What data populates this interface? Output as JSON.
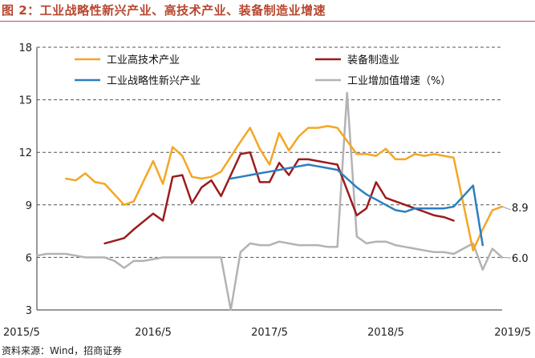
{
  "header": {
    "title": "图 2：工业战略性新兴产业、高技术产业、装备制造业增速"
  },
  "footer": {
    "source": "资料来源：Wind，招商证券"
  },
  "colors": {
    "high_tech": "#f5a623",
    "equipment": "#9b1c1c",
    "strategic": "#2b7fc1",
    "industrial": "#b3b3b3",
    "title": "#b8462e",
    "grid": "#555555"
  },
  "chart_data": {
    "type": "line",
    "title": "图 2：工业战略性新兴产业、高技术产业、装备制造业增速",
    "xlabel": "",
    "ylabel": "",
    "ylim": [
      3,
      18
    ],
    "yticks": [
      3,
      6,
      9,
      12,
      15,
      18
    ],
    "x_start": "2015/5",
    "x_end": "2019/5",
    "x_ticks": [
      "2015/5",
      "2016/5",
      "2017/5",
      "2018/5",
      "2019/5"
    ],
    "grid": "horizontal dashed",
    "legend_position": "top",
    "end_labels": [
      "8.9",
      "6.0"
    ],
    "series": [
      {
        "name": "工业高技术产业",
        "color": "#f5a623",
        "points": [
          [
            "2015/8",
            10.5
          ],
          [
            "2015/9",
            10.4
          ],
          [
            "2015/10",
            10.8
          ],
          [
            "2015/11",
            10.3
          ],
          [
            "2015/12",
            10.2
          ],
          [
            "2016/2",
            9.0
          ],
          [
            "2016/3",
            9.2
          ],
          [
            "2016/5",
            11.5
          ],
          [
            "2016/6",
            10.2
          ],
          [
            "2016/7",
            12.3
          ],
          [
            "2016/8",
            11.8
          ],
          [
            "2016/9",
            10.6
          ],
          [
            "2016/10",
            10.5
          ],
          [
            "2016/11",
            10.6
          ],
          [
            "2016/12",
            10.9
          ],
          [
            "2017/2",
            12.6
          ],
          [
            "2017/3",
            13.4
          ],
          [
            "2017/4",
            12.2
          ],
          [
            "2017/5",
            11.3
          ],
          [
            "2017/6",
            13.1
          ],
          [
            "2017/7",
            12.1
          ],
          [
            "2017/8",
            12.9
          ],
          [
            "2017/9",
            13.4
          ],
          [
            "2017/10",
            13.4
          ],
          [
            "2017/11",
            13.5
          ],
          [
            "2017/12",
            13.4
          ],
          [
            "2018/2",
            11.9
          ],
          [
            "2018/3",
            11.9
          ],
          [
            "2018/4",
            11.8
          ],
          [
            "2018/5",
            12.2
          ],
          [
            "2018/6",
            11.6
          ],
          [
            "2018/7",
            11.6
          ],
          [
            "2018/8",
            11.9
          ],
          [
            "2018/9",
            11.8
          ],
          [
            "2018/10",
            11.9
          ],
          [
            "2018/11",
            11.8
          ],
          [
            "2018/12",
            11.7
          ],
          [
            "2019/2",
            6.4
          ],
          [
            "2019/3",
            7.6
          ],
          [
            "2019/4",
            8.7
          ],
          [
            "2019/5",
            8.9
          ]
        ]
      },
      {
        "name": "装备制造业",
        "color": "#9b1c1c",
        "points": [
          [
            "2015/12",
            6.8
          ],
          [
            "2016/2",
            7.1
          ],
          [
            "2016/3",
            7.6
          ],
          [
            "2016/5",
            8.5
          ],
          [
            "2016/6",
            8.1
          ],
          [
            "2016/7",
            10.6
          ],
          [
            "2016/8",
            10.7
          ],
          [
            "2016/9",
            9.1
          ],
          [
            "2016/10",
            10.0
          ],
          [
            "2016/11",
            10.4
          ],
          [
            "2016/12",
            9.5
          ],
          [
            "2017/2",
            11.9
          ],
          [
            "2017/3",
            12.0
          ],
          [
            "2017/4",
            10.3
          ],
          [
            "2017/5",
            10.3
          ],
          [
            "2017/6",
            11.4
          ],
          [
            "2017/7",
            10.7
          ],
          [
            "2017/8",
            11.6
          ],
          [
            "2017/9",
            11.6
          ],
          [
            "2017/10",
            11.5
          ],
          [
            "2017/11",
            11.4
          ],
          [
            "2017/12",
            11.3
          ],
          [
            "2018/2",
            8.4
          ],
          [
            "2018/3",
            8.8
          ],
          [
            "2018/4",
            10.3
          ],
          [
            "2018/5",
            9.4
          ],
          [
            "2018/6",
            9.2
          ],
          [
            "2018/7",
            9.0
          ],
          [
            "2018/8",
            8.8
          ],
          [
            "2018/9",
            8.6
          ],
          [
            "2018/10",
            8.4
          ],
          [
            "2018/11",
            8.3
          ],
          [
            "2018/12",
            8.1
          ]
        ]
      },
      {
        "name": "工业战略性新兴产业",
        "color": "#2b7fc1",
        "points": [
          [
            "2017/1",
            10.5
          ],
          [
            "2017/2",
            10.6
          ],
          [
            "2017/3",
            10.7
          ],
          [
            "2017/4",
            10.8
          ],
          [
            "2017/5",
            10.9
          ],
          [
            "2017/6",
            11.0
          ],
          [
            "2017/7",
            11.1
          ],
          [
            "2017/8",
            11.2
          ],
          [
            "2017/9",
            11.3
          ],
          [
            "2017/10",
            11.2
          ],
          [
            "2017/11",
            11.1
          ],
          [
            "2017/12",
            11.0
          ],
          [
            "2018/1",
            10.5
          ],
          [
            "2018/2",
            10.0
          ],
          [
            "2018/3",
            9.6
          ],
          [
            "2018/4",
            9.3
          ],
          [
            "2018/5",
            9.0
          ],
          [
            "2018/6",
            8.7
          ],
          [
            "2018/7",
            8.6
          ],
          [
            "2018/8",
            8.8
          ],
          [
            "2018/9",
            8.8
          ],
          [
            "2018/10",
            8.8
          ],
          [
            "2018/11",
            8.8
          ],
          [
            "2018/12",
            8.9
          ],
          [
            "2019/2",
            10.1
          ],
          [
            "2019/3",
            6.7
          ]
        ]
      },
      {
        "name": "工业增加值增速（%）",
        "color": "#b3b3b3",
        "points": [
          [
            "2015/5",
            6.1
          ],
          [
            "2015/6",
            6.2
          ],
          [
            "2015/7",
            6.2
          ],
          [
            "2015/8",
            6.2
          ],
          [
            "2015/9",
            6.1
          ],
          [
            "2015/10",
            6.0
          ],
          [
            "2015/11",
            6.0
          ],
          [
            "2015/12",
            6.0
          ],
          [
            "2016/1",
            5.8
          ],
          [
            "2016/2",
            5.4
          ],
          [
            "2016/3",
            5.8
          ],
          [
            "2016/4",
            5.8
          ],
          [
            "2016/5",
            5.9
          ],
          [
            "2016/6",
            6.0
          ],
          [
            "2016/7",
            6.0
          ],
          [
            "2016/8",
            6.0
          ],
          [
            "2016/9",
            6.0
          ],
          [
            "2016/10",
            6.0
          ],
          [
            "2016/11",
            6.0
          ],
          [
            "2016/12",
            6.0
          ],
          [
            "2017/1",
            3.0
          ],
          [
            "2017/2",
            6.3
          ],
          [
            "2017/3",
            6.8
          ],
          [
            "2017/4",
            6.7
          ],
          [
            "2017/5",
            6.7
          ],
          [
            "2017/6",
            6.9
          ],
          [
            "2017/7",
            6.8
          ],
          [
            "2017/8",
            6.7
          ],
          [
            "2017/9",
            6.7
          ],
          [
            "2017/10",
            6.7
          ],
          [
            "2017/11",
            6.6
          ],
          [
            "2017/12",
            6.6
          ],
          [
            "2018/1",
            15.4
          ],
          [
            "2018/2",
            7.2
          ],
          [
            "2018/3",
            6.8
          ],
          [
            "2018/4",
            6.9
          ],
          [
            "2018/5",
            6.9
          ],
          [
            "2018/6",
            6.7
          ],
          [
            "2018/7",
            6.6
          ],
          [
            "2018/8",
            6.5
          ],
          [
            "2018/9",
            6.4
          ],
          [
            "2018/10",
            6.3
          ],
          [
            "2018/11",
            6.3
          ],
          [
            "2018/12",
            6.2
          ],
          [
            "2019/2",
            6.8
          ],
          [
            "2019/3",
            5.3
          ],
          [
            "2019/4",
            6.5
          ],
          [
            "2019/5",
            6.0
          ]
        ]
      }
    ]
  }
}
